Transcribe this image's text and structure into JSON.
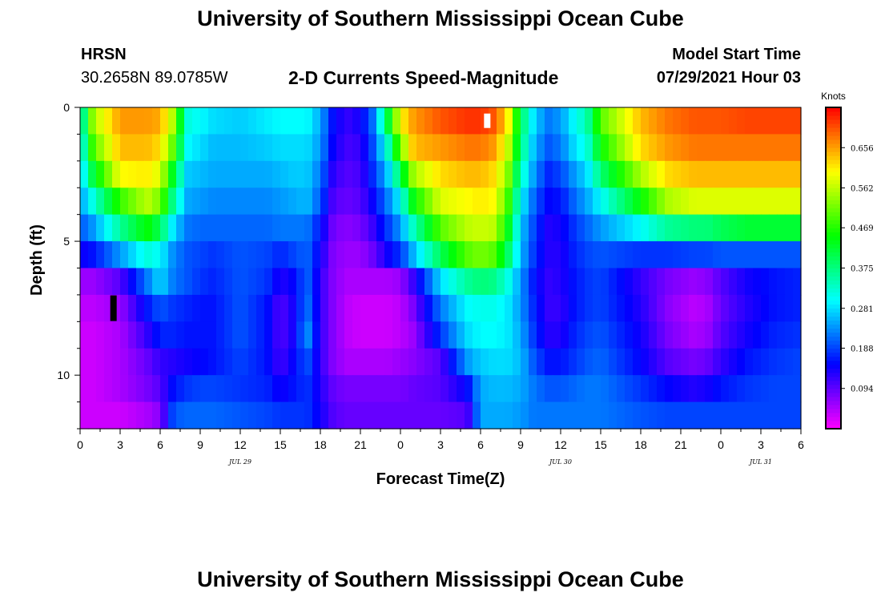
{
  "header": {
    "title": "University of Southern Mississippi Ocean Cube",
    "station_name": "HRSN",
    "station_coords": "30.2658N  89.0785W",
    "plot_title": "2-D Currents Speed-Magnitude",
    "model_start_label": "Model Start Time",
    "model_start_value": "07/29/2021 Hour 03"
  },
  "footer": {
    "title": "University of Southern Mississippi Ocean Cube"
  },
  "chart_data": {
    "type": "heatmap",
    "title": "2-D Currents Speed-Magnitude",
    "xlabel": "Forecast Time(Z)",
    "ylabel": "Depth (ft)",
    "x_unit": "hours since 2021-07-29 00Z",
    "xlim": [
      0,
      54
    ],
    "ylim": [
      0,
      12
    ],
    "x_ticks": [
      0,
      3,
      6,
      9,
      12,
      15,
      18,
      21,
      24,
      27,
      30,
      33,
      36,
      39,
      42,
      45,
      48,
      51,
      54
    ],
    "x_tick_labels": [
      "0",
      "3",
      "6",
      "9",
      "12",
      "15",
      "18",
      "21",
      "0",
      "3",
      "6",
      "9",
      "12",
      "15",
      "18",
      "21",
      "0",
      "3",
      "6"
    ],
    "date_labels": [
      {
        "x": 12,
        "text": "JUL 29"
      },
      {
        "x": 36,
        "text": "JUL 30"
      },
      {
        "x": 51,
        "text": "JUL 31"
      }
    ],
    "y_ticks": [
      0,
      5,
      10
    ],
    "y_tick_labels": [
      "0",
      "5",
      "10"
    ],
    "depth_levels": [
      0.5,
      1.5,
      2.5,
      3.5,
      4.5,
      5.5,
      6.5,
      7.5,
      8.5,
      9.5,
      10.5,
      11.5
    ],
    "colorbar": {
      "label": "Knots",
      "min": 0.0,
      "max": 0.75,
      "ticks": [
        0.094,
        0.188,
        0.281,
        0.375,
        0.469,
        0.562,
        0.656
      ],
      "tick_labels": [
        "0.094",
        "0.188",
        "0.281",
        "0.375",
        "0.469",
        "0.562",
        "0.656"
      ]
    },
    "speed_keyframes": {
      "times": [
        0,
        1,
        3,
        5,
        6,
        7,
        8,
        9,
        10,
        12,
        14,
        15,
        16,
        17,
        18,
        19,
        20,
        21,
        22,
        23,
        24,
        25,
        27,
        29,
        30,
        31,
        32,
        33,
        34,
        35,
        36,
        37,
        38,
        39,
        42,
        44,
        46,
        47,
        48,
        50,
        52,
        54
      ],
      "rows": [
        [
          0.3,
          0.55,
          0.66,
          0.66,
          0.65,
          0.55,
          0.32,
          0.3,
          0.28,
          0.27,
          0.29,
          0.3,
          0.3,
          0.3,
          0.25,
          0.15,
          0.12,
          0.14,
          0.22,
          0.4,
          0.6,
          0.66,
          0.7,
          0.72,
          0.72,
          0.7,
          0.62,
          0.4,
          0.28,
          0.22,
          0.24,
          0.3,
          0.35,
          0.5,
          0.64,
          0.68,
          0.7,
          0.7,
          0.7,
          0.71,
          0.71,
          0.71
        ],
        [
          0.28,
          0.5,
          0.64,
          0.64,
          0.62,
          0.5,
          0.3,
          0.28,
          0.26,
          0.26,
          0.27,
          0.28,
          0.28,
          0.28,
          0.24,
          0.14,
          0.11,
          0.12,
          0.2,
          0.32,
          0.52,
          0.64,
          0.66,
          0.68,
          0.68,
          0.66,
          0.58,
          0.38,
          0.26,
          0.2,
          0.22,
          0.28,
          0.32,
          0.45,
          0.62,
          0.66,
          0.68,
          0.68,
          0.68,
          0.68,
          0.68,
          0.68
        ],
        [
          0.26,
          0.42,
          0.6,
          0.61,
          0.58,
          0.42,
          0.27,
          0.26,
          0.25,
          0.25,
          0.25,
          0.26,
          0.27,
          0.27,
          0.22,
          0.12,
          0.1,
          0.11,
          0.18,
          0.26,
          0.4,
          0.55,
          0.62,
          0.64,
          0.64,
          0.62,
          0.54,
          0.34,
          0.24,
          0.17,
          0.19,
          0.24,
          0.28,
          0.38,
          0.55,
          0.62,
          0.64,
          0.64,
          0.64,
          0.64,
          0.64,
          0.64
        ],
        [
          0.24,
          0.32,
          0.48,
          0.56,
          0.52,
          0.36,
          0.25,
          0.24,
          0.23,
          0.23,
          0.23,
          0.24,
          0.25,
          0.26,
          0.2,
          0.1,
          0.09,
          0.1,
          0.15,
          0.22,
          0.3,
          0.45,
          0.58,
          0.6,
          0.61,
          0.6,
          0.5,
          0.3,
          0.21,
          0.15,
          0.16,
          0.21,
          0.25,
          0.3,
          0.45,
          0.55,
          0.58,
          0.58,
          0.58,
          0.58,
          0.58,
          0.58
        ],
        [
          0.2,
          0.24,
          0.36,
          0.45,
          0.4,
          0.28,
          0.22,
          0.21,
          0.21,
          0.21,
          0.21,
          0.22,
          0.22,
          0.22,
          0.16,
          0.08,
          0.07,
          0.08,
          0.12,
          0.18,
          0.24,
          0.34,
          0.5,
          0.56,
          0.57,
          0.56,
          0.45,
          0.27,
          0.19,
          0.13,
          0.14,
          0.18,
          0.21,
          0.24,
          0.3,
          0.36,
          0.38,
          0.38,
          0.4,
          0.42,
          0.42,
          0.42
        ],
        [
          0.14,
          0.16,
          0.24,
          0.32,
          0.3,
          0.23,
          0.2,
          0.19,
          0.18,
          0.2,
          0.19,
          0.17,
          0.19,
          0.21,
          0.14,
          0.07,
          0.06,
          0.06,
          0.09,
          0.14,
          0.18,
          0.26,
          0.4,
          0.5,
          0.52,
          0.5,
          0.4,
          0.26,
          0.18,
          0.13,
          0.13,
          0.17,
          0.19,
          0.2,
          0.18,
          0.18,
          0.19,
          0.19,
          0.2,
          0.2,
          0.2,
          0.2
        ],
        [
          0.06,
          0.06,
          0.1,
          0.22,
          0.28,
          0.22,
          0.2,
          0.18,
          0.17,
          0.2,
          0.18,
          0.13,
          0.15,
          0.21,
          0.12,
          0.07,
          0.05,
          0.05,
          0.05,
          0.05,
          0.06,
          0.12,
          0.28,
          0.36,
          0.38,
          0.37,
          0.32,
          0.24,
          0.16,
          0.12,
          0.13,
          0.16,
          0.18,
          0.19,
          0.12,
          0.08,
          0.06,
          0.07,
          0.1,
          0.14,
          0.16,
          0.17
        ],
        [
          0.04,
          0.04,
          0.06,
          0.16,
          0.2,
          0.18,
          0.17,
          0.16,
          0.16,
          0.2,
          0.16,
          0.1,
          0.14,
          0.22,
          0.12,
          0.07,
          0.04,
          0.03,
          0.03,
          0.03,
          0.04,
          0.08,
          0.22,
          0.3,
          0.31,
          0.31,
          0.29,
          0.24,
          0.17,
          0.12,
          0.12,
          0.16,
          0.18,
          0.19,
          0.13,
          0.07,
          0.04,
          0.05,
          0.09,
          0.13,
          0.16,
          0.17
        ],
        [
          0.03,
          0.03,
          0.05,
          0.12,
          0.17,
          0.17,
          0.16,
          0.16,
          0.16,
          0.2,
          0.16,
          0.1,
          0.14,
          0.24,
          0.12,
          0.07,
          0.04,
          0.03,
          0.03,
          0.03,
          0.04,
          0.06,
          0.18,
          0.28,
          0.3,
          0.3,
          0.29,
          0.25,
          0.18,
          0.13,
          0.13,
          0.17,
          0.19,
          0.2,
          0.14,
          0.08,
          0.05,
          0.06,
          0.1,
          0.14,
          0.17,
          0.18
        ],
        [
          0.03,
          0.03,
          0.05,
          0.09,
          0.12,
          0.13,
          0.14,
          0.15,
          0.16,
          0.19,
          0.16,
          0.11,
          0.15,
          0.2,
          0.12,
          0.07,
          0.05,
          0.05,
          0.05,
          0.05,
          0.06,
          0.07,
          0.1,
          0.24,
          0.27,
          0.28,
          0.28,
          0.26,
          0.2,
          0.16,
          0.16,
          0.18,
          0.2,
          0.21,
          0.15,
          0.1,
          0.08,
          0.09,
          0.12,
          0.16,
          0.18,
          0.19
        ],
        [
          0.03,
          0.03,
          0.05,
          0.08,
          0.1,
          0.16,
          0.18,
          0.19,
          0.19,
          0.18,
          0.17,
          0.14,
          0.16,
          0.18,
          0.13,
          0.09,
          0.08,
          0.08,
          0.08,
          0.08,
          0.08,
          0.09,
          0.1,
          0.15,
          0.25,
          0.26,
          0.26,
          0.25,
          0.22,
          0.2,
          0.2,
          0.21,
          0.22,
          0.22,
          0.18,
          0.15,
          0.13,
          0.14,
          0.16,
          0.18,
          0.19,
          0.19
        ],
        [
          0.03,
          0.03,
          0.03,
          0.05,
          0.07,
          0.2,
          0.21,
          0.21,
          0.21,
          0.2,
          0.19,
          0.18,
          0.18,
          0.18,
          0.14,
          0.1,
          0.09,
          0.09,
          0.09,
          0.09,
          0.09,
          0.09,
          0.09,
          0.1,
          0.25,
          0.25,
          0.25,
          0.24,
          0.22,
          0.22,
          0.22,
          0.22,
          0.22,
          0.22,
          0.2,
          0.19,
          0.19,
          0.19,
          0.19,
          0.19,
          0.19,
          0.19
        ]
      ]
    },
    "missing_cells": [
      {
        "x": 30.5,
        "depth": 0.5
      },
      {
        "x": 2.5,
        "depth": 7.5
      }
    ]
  }
}
